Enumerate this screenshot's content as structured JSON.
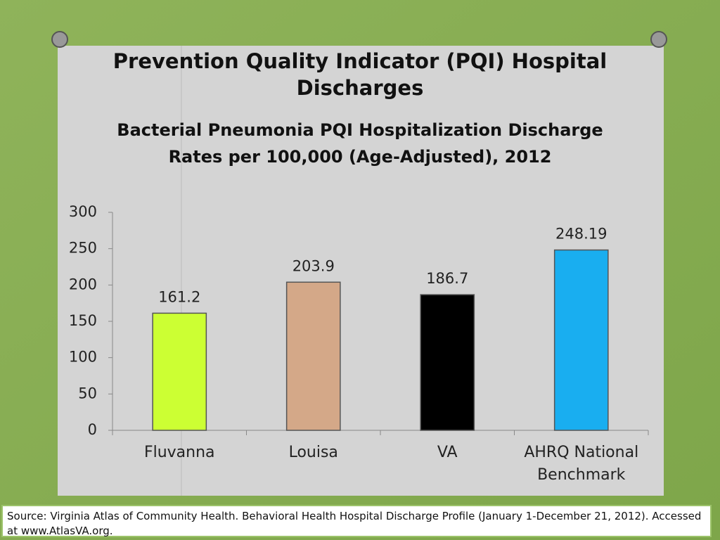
{
  "slide_title": "Prevention Quality Indicator (PQI) Hospital Discharges",
  "chart_data": {
    "type": "bar",
    "title": "Bacterial Pneumonia PQI Hospitalization Discharge Rates per 100,000 (Age-Adjusted), 2012",
    "categories": [
      "Fluvanna",
      "Louisa",
      "VA",
      "AHRQ National Benchmark"
    ],
    "values": [
      161.2,
      203.9,
      186.7,
      248.19
    ],
    "colors": [
      "#ccff33",
      "#d4a888",
      "#000000",
      "#19aef0"
    ],
    "ylim": [
      0,
      300
    ],
    "yticks": [
      0,
      50,
      100,
      150,
      200,
      250,
      300
    ],
    "grid": false
  },
  "source": "Source: Virginia Atlas of Community Health. Behavioral Health Hospital Discharge Profile (January 1-December 21, 2012). Accessed at www.AtlasVA.org."
}
